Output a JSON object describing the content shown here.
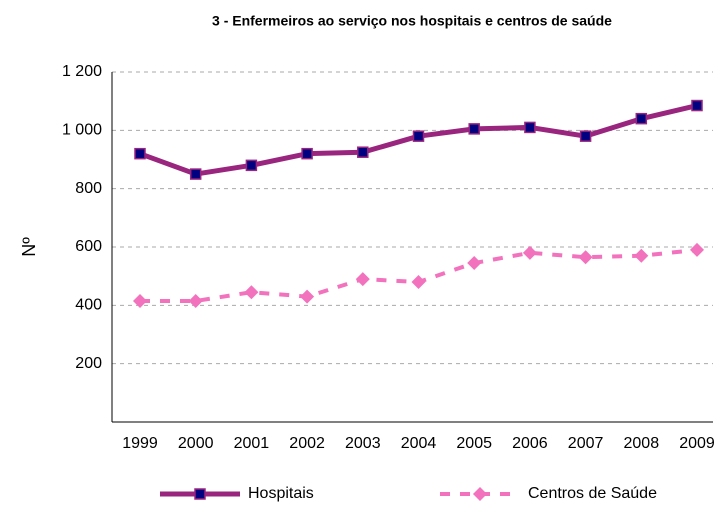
{
  "chart_data": {
    "type": "line",
    "title": "3 - Enfermeiros ao serviço nos hospitais e centros de saúde",
    "y_label": "Nº",
    "categories": [
      "1999",
      "2000",
      "2001",
      "2002",
      "2003",
      "2004",
      "2005",
      "2006",
      "2007",
      "2008",
      "2009"
    ],
    "series": [
      {
        "name": "Hospitais",
        "color": "#99257f",
        "marker_color": "#000080",
        "marker": "square",
        "dash": false,
        "values": [
          920,
          850,
          880,
          920,
          925,
          980,
          1005,
          1010,
          980,
          1040,
          1085
        ]
      },
      {
        "name": "Centros de Saúde",
        "color": "#f272bd",
        "marker_color": "#f272bd",
        "marker": "diamond",
        "dash": true,
        "values": [
          415,
          415,
          445,
          430,
          490,
          480,
          545,
          580,
          565,
          570,
          590
        ]
      }
    ],
    "ylim": [
      0,
      1200
    ],
    "yticks": [
      200,
      400,
      600,
      800,
      {
        "value": 1000,
        "label": "1 000"
      },
      {
        "value": 1200,
        "label": "1 200"
      }
    ],
    "grid": true,
    "legend": "bottom"
  }
}
